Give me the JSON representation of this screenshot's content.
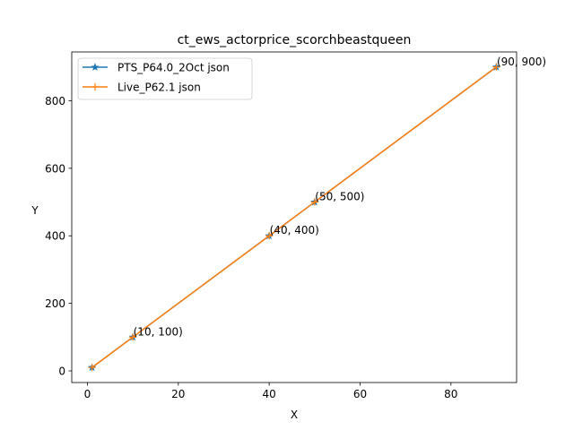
{
  "chart_data": {
    "type": "line",
    "title": "ct_ews_actorprice_scorchbeastqueen",
    "xlabel": "X",
    "ylabel": "Y",
    "xlim": [
      -3.45,
      94.45
    ],
    "ylim": [
      -34.5,
      944.5
    ],
    "xticks": [
      0,
      20,
      40,
      60,
      80
    ],
    "yticks": [
      0,
      200,
      400,
      600,
      800
    ],
    "grid": false,
    "legend_position": "top-left",
    "series": [
      {
        "name": "PTS_P64.0_2Oct json",
        "color": "#1f77b4",
        "marker": "star",
        "x": [
          1,
          10,
          40,
          50,
          90
        ],
        "y": [
          10,
          100,
          400,
          500,
          900
        ]
      },
      {
        "name": "Live_P62.1 json",
        "color": "#ff7f0e",
        "marker": "plus",
        "x": [
          1,
          10,
          40,
          50,
          90
        ],
        "y": [
          10,
          100,
          400,
          500,
          900
        ]
      }
    ],
    "annotations": [
      {
        "text": "(10, 100)",
        "x": 10,
        "y": 100
      },
      {
        "text": "(40, 400)",
        "x": 40,
        "y": 400
      },
      {
        "text": "(50, 500)",
        "x": 50,
        "y": 500
      },
      {
        "text": "(90, 900)",
        "x": 90,
        "y": 900
      }
    ]
  }
}
